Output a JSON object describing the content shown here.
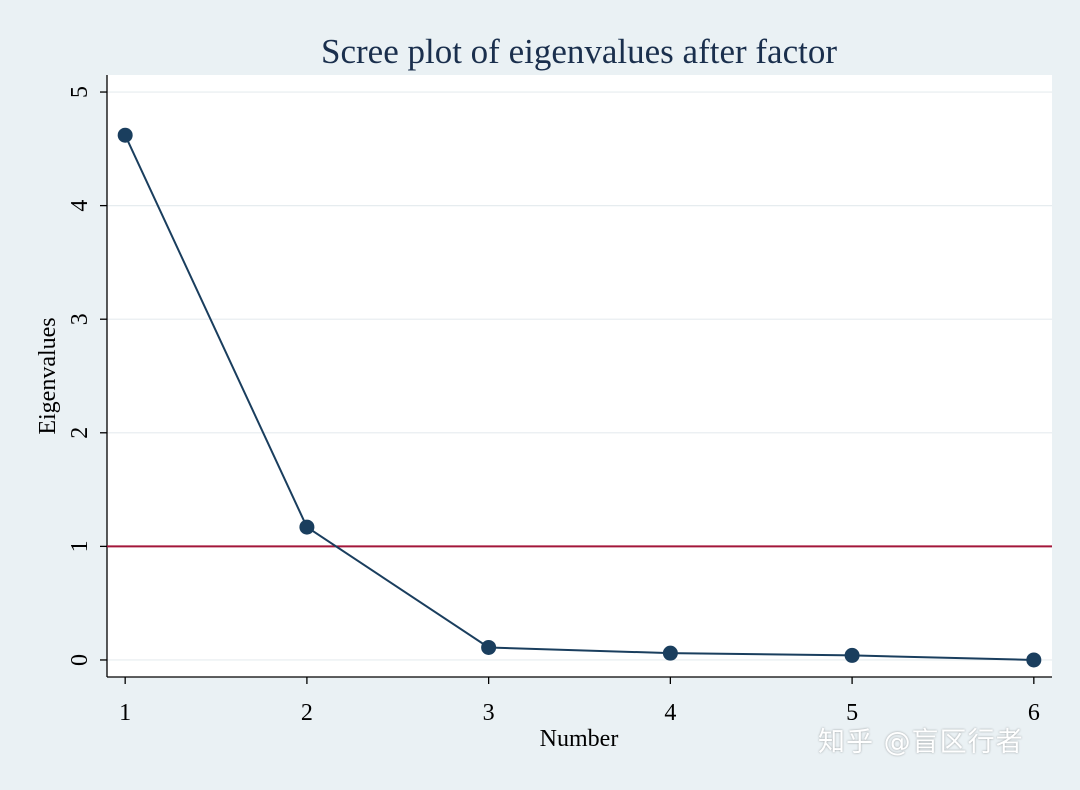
{
  "chart_data": {
    "type": "line",
    "title": "Scree plot of eigenvalues after factor",
    "xlabel": "Number",
    "ylabel": "Eigenvalues",
    "x": [
      1,
      2,
      3,
      4,
      5,
      6
    ],
    "series": [
      {
        "values": [
          4.62,
          1.17,
          0.11,
          0.06,
          0.04,
          0.0
        ],
        "color": "#1a3e5e"
      }
    ],
    "reference_line": {
      "y": 1,
      "color": "#a3173a"
    },
    "xlim": [
      0.9,
      6.1
    ],
    "ylim": [
      -0.15,
      5.15
    ],
    "xticks": [
      1,
      2,
      3,
      4,
      5,
      6
    ],
    "yticks": [
      0,
      1,
      2,
      3,
      4,
      5
    ],
    "grid": true,
    "legend": "none"
  },
  "colors": {
    "page_background": "#eaf1f4",
    "plot_background": "#ffffff",
    "gridline": "#e6ecef",
    "axis": "#000000",
    "title": "#1a2f4d"
  },
  "watermark": "知乎 @盲区行者"
}
